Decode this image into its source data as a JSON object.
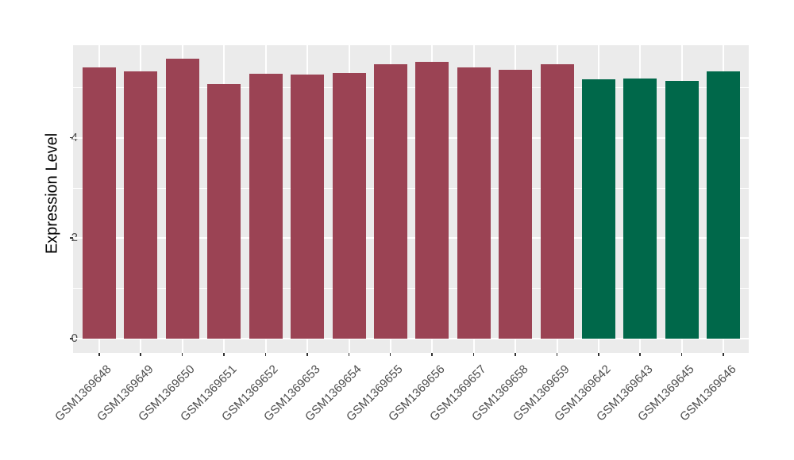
{
  "chart_data": {
    "type": "bar",
    "title": "",
    "xlabel": "",
    "ylabel": "Expression Level",
    "yticks": [
      0,
      2,
      4
    ],
    "minor_yticks": [
      1,
      3,
      5
    ],
    "axis_range": [
      -0.28,
      5.85
    ],
    "grid": "white major and minor gridlines on gray panel (ggplot style)",
    "legend_position": "none",
    "categories": [
      "GSM1369648",
      "GSM1369649",
      "GSM1369650",
      "GSM1369651",
      "GSM1369652",
      "GSM1369653",
      "GSM1369654",
      "GSM1369655",
      "GSM1369656",
      "GSM1369657",
      "GSM1369658",
      "GSM1369659",
      "GSM1369642",
      "GSM1369643",
      "GSM1369645",
      "GSM1369646"
    ],
    "values": [
      5.4,
      5.32,
      5.58,
      5.07,
      5.27,
      5.26,
      5.29,
      5.46,
      5.52,
      5.4,
      5.36,
      5.47,
      5.17,
      5.18,
      5.14,
      5.33
    ],
    "bar_groups": [
      "red",
      "red",
      "red",
      "red",
      "red",
      "red",
      "red",
      "red",
      "red",
      "red",
      "red",
      "red",
      "green",
      "green",
      "green",
      "green"
    ]
  },
  "colors": {
    "bar_red": "#9B4354",
    "bar_green": "#00684A",
    "panel_background": "#EBEBEB",
    "gridline": "#FFFFFF",
    "axis_text": "#4D4D4D",
    "axis_title": "#000000",
    "tick_mark": "#333333"
  }
}
